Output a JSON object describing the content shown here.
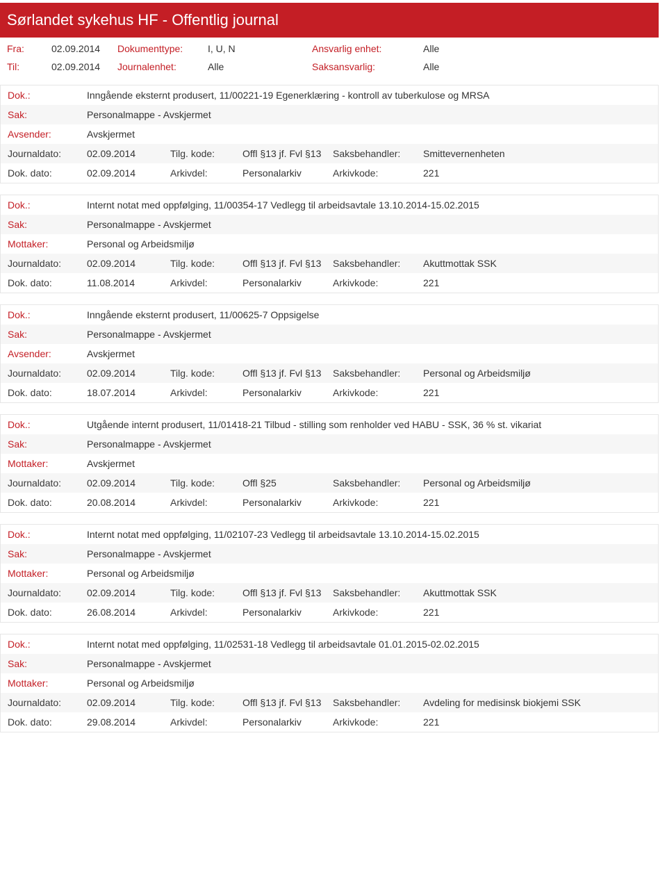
{
  "header": {
    "title": "Sørlandet sykehus HF - Offentlig journal"
  },
  "filters": {
    "fra": {
      "label": "Fra:",
      "value": "02.09.2014"
    },
    "til": {
      "label": "Til:",
      "value": "02.09.2014"
    },
    "doktype": {
      "label": "Dokumenttype:",
      "value": "I, U, N"
    },
    "journalenhet": {
      "label": "Journalenhet:",
      "value": "Alle"
    },
    "ansvarlig": {
      "label": "Ansvarlig enhet:",
      "value": "Alle"
    },
    "saksansvarlig": {
      "label": "Saksansvarlig:",
      "value": "Alle"
    }
  },
  "labels": {
    "dok": "Dok.:",
    "sak": "Sak:",
    "avsender": "Avsender:",
    "mottaker": "Mottaker:",
    "journaldato": "Journaldato:",
    "dokdato": "Dok. dato:",
    "tilgkode": "Tilg. kode:",
    "arkivdel": "Arkivdel:",
    "saksbehandler": "Saksbehandler:",
    "arkivkode": "Arkivkode:"
  },
  "entries": [
    {
      "dok": "Inngående eksternt produsert, 11/00221-19 Egenerklæring - kontroll av tuberkulose og MRSA",
      "sak": "Personalmappe - Avskjermet",
      "partyLabel": "avsender",
      "party": "Avskjermet",
      "journaldato": "02.09.2014",
      "tilgkode": "Offl §13 jf. Fvl §13",
      "saksbehandler": "Smittevernenheten",
      "dokdato": "02.09.2014",
      "arkivdel": "Personalarkiv",
      "arkivkode": "221"
    },
    {
      "dok": "Internt notat med oppfølging, 11/00354-17 Vedlegg til arbeidsavtale 13.10.2014-15.02.2015",
      "sak": "Personalmappe - Avskjermet",
      "partyLabel": "mottaker",
      "party": "Personal og Arbeidsmiljø",
      "journaldato": "02.09.2014",
      "tilgkode": "Offl §13 jf. Fvl §13",
      "saksbehandler": "Akuttmottak SSK",
      "dokdato": "11.08.2014",
      "arkivdel": "Personalarkiv",
      "arkivkode": "221"
    },
    {
      "dok": "Inngående eksternt produsert, 11/00625-7 Oppsigelse",
      "sak": "Personalmappe - Avskjermet",
      "partyLabel": "avsender",
      "party": "Avskjermet",
      "journaldato": "02.09.2014",
      "tilgkode": "Offl §13 jf. Fvl §13",
      "saksbehandler": "Personal og Arbeidsmiljø",
      "dokdato": "18.07.2014",
      "arkivdel": "Personalarkiv",
      "arkivkode": "221"
    },
    {
      "dok": "Utgående internt produsert, 11/01418-21 Tilbud - stilling som renholder ved HABU - SSK, 36 % st. vikariat",
      "sak": "Personalmappe - Avskjermet",
      "partyLabel": "mottaker",
      "party": "Avskjermet",
      "journaldato": "02.09.2014",
      "tilgkode": "Offl §25",
      "saksbehandler": "Personal og Arbeidsmiljø",
      "dokdato": "20.08.2014",
      "arkivdel": "Personalarkiv",
      "arkivkode": "221"
    },
    {
      "dok": "Internt notat med oppfølging, 11/02107-23 Vedlegg til arbeidsavtale 13.10.2014-15.02.2015",
      "sak": "Personalmappe - Avskjermet",
      "partyLabel": "mottaker",
      "party": "Personal og Arbeidsmiljø",
      "journaldato": "02.09.2014",
      "tilgkode": "Offl §13 jf. Fvl §13",
      "saksbehandler": "Akuttmottak SSK",
      "dokdato": "26.08.2014",
      "arkivdel": "Personalarkiv",
      "arkivkode": "221"
    },
    {
      "dok": "Internt notat med oppfølging, 11/02531-18 Vedlegg til arbeidsavtale 01.01.2015-02.02.2015",
      "sak": "Personalmappe - Avskjermet",
      "partyLabel": "mottaker",
      "party": "Personal og Arbeidsmiljø",
      "journaldato": "02.09.2014",
      "tilgkode": "Offl §13 jf. Fvl §13",
      "saksbehandler": "Avdeling for medisinsk biokjemi SSK",
      "dokdato": "29.08.2014",
      "arkivdel": "Personalarkiv",
      "arkivkode": "221"
    }
  ],
  "colors": {
    "header_bg": "#c41e25",
    "header_text": "#ffffff",
    "label_color": "#c41e25",
    "border": "#e6e6e6",
    "alt_bg": "#f6f6f6"
  }
}
